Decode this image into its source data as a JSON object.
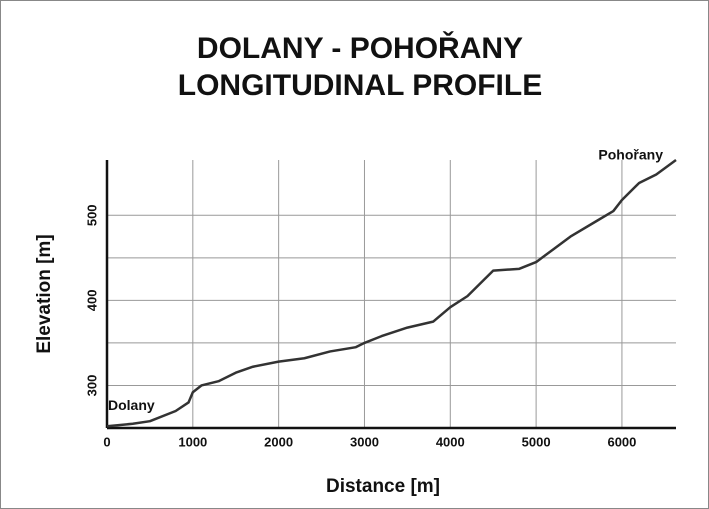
{
  "chart_data": {
    "type": "line",
    "title": [
      "DOLANY - POHOŘANY",
      "LONGITUDINAL PROFILE"
    ],
    "x_label": "Distance  [m]",
    "y_label": "Elevation  [m]",
    "annotations": [
      "Dolany",
      "Pohořany"
    ],
    "x": [
      0,
      300,
      500,
      800,
      950,
      1000,
      1100,
      1300,
      1500,
      1700,
      2000,
      2300,
      2600,
      2900,
      3000,
      3200,
      3500,
      3800,
      4000,
      4200,
      4400,
      4500,
      4800,
      5000,
      5200,
      5400,
      5700,
      5900,
      6000,
      6200,
      6400,
      6630
    ],
    "series": [
      {
        "name": "Elevation",
        "color": "#333333",
        "values": [
          252,
          255,
          258,
          270,
          280,
          292,
          300,
          305,
          315,
          322,
          328,
          332,
          340,
          345,
          350,
          358,
          368,
          375,
          392,
          405,
          425,
          435,
          437,
          445,
          460,
          475,
          493,
          505,
          518,
          538,
          548,
          565
        ]
      }
    ],
    "xlim": [
      0,
      6630
    ],
    "ylim": [
      250,
      565
    ],
    "xticks": [
      0,
      1000,
      2000,
      3000,
      4000,
      5000,
      6000
    ],
    "yticks": [
      300,
      400,
      500
    ],
    "y_minor_grid": [
      350,
      450
    ],
    "grid": true
  }
}
